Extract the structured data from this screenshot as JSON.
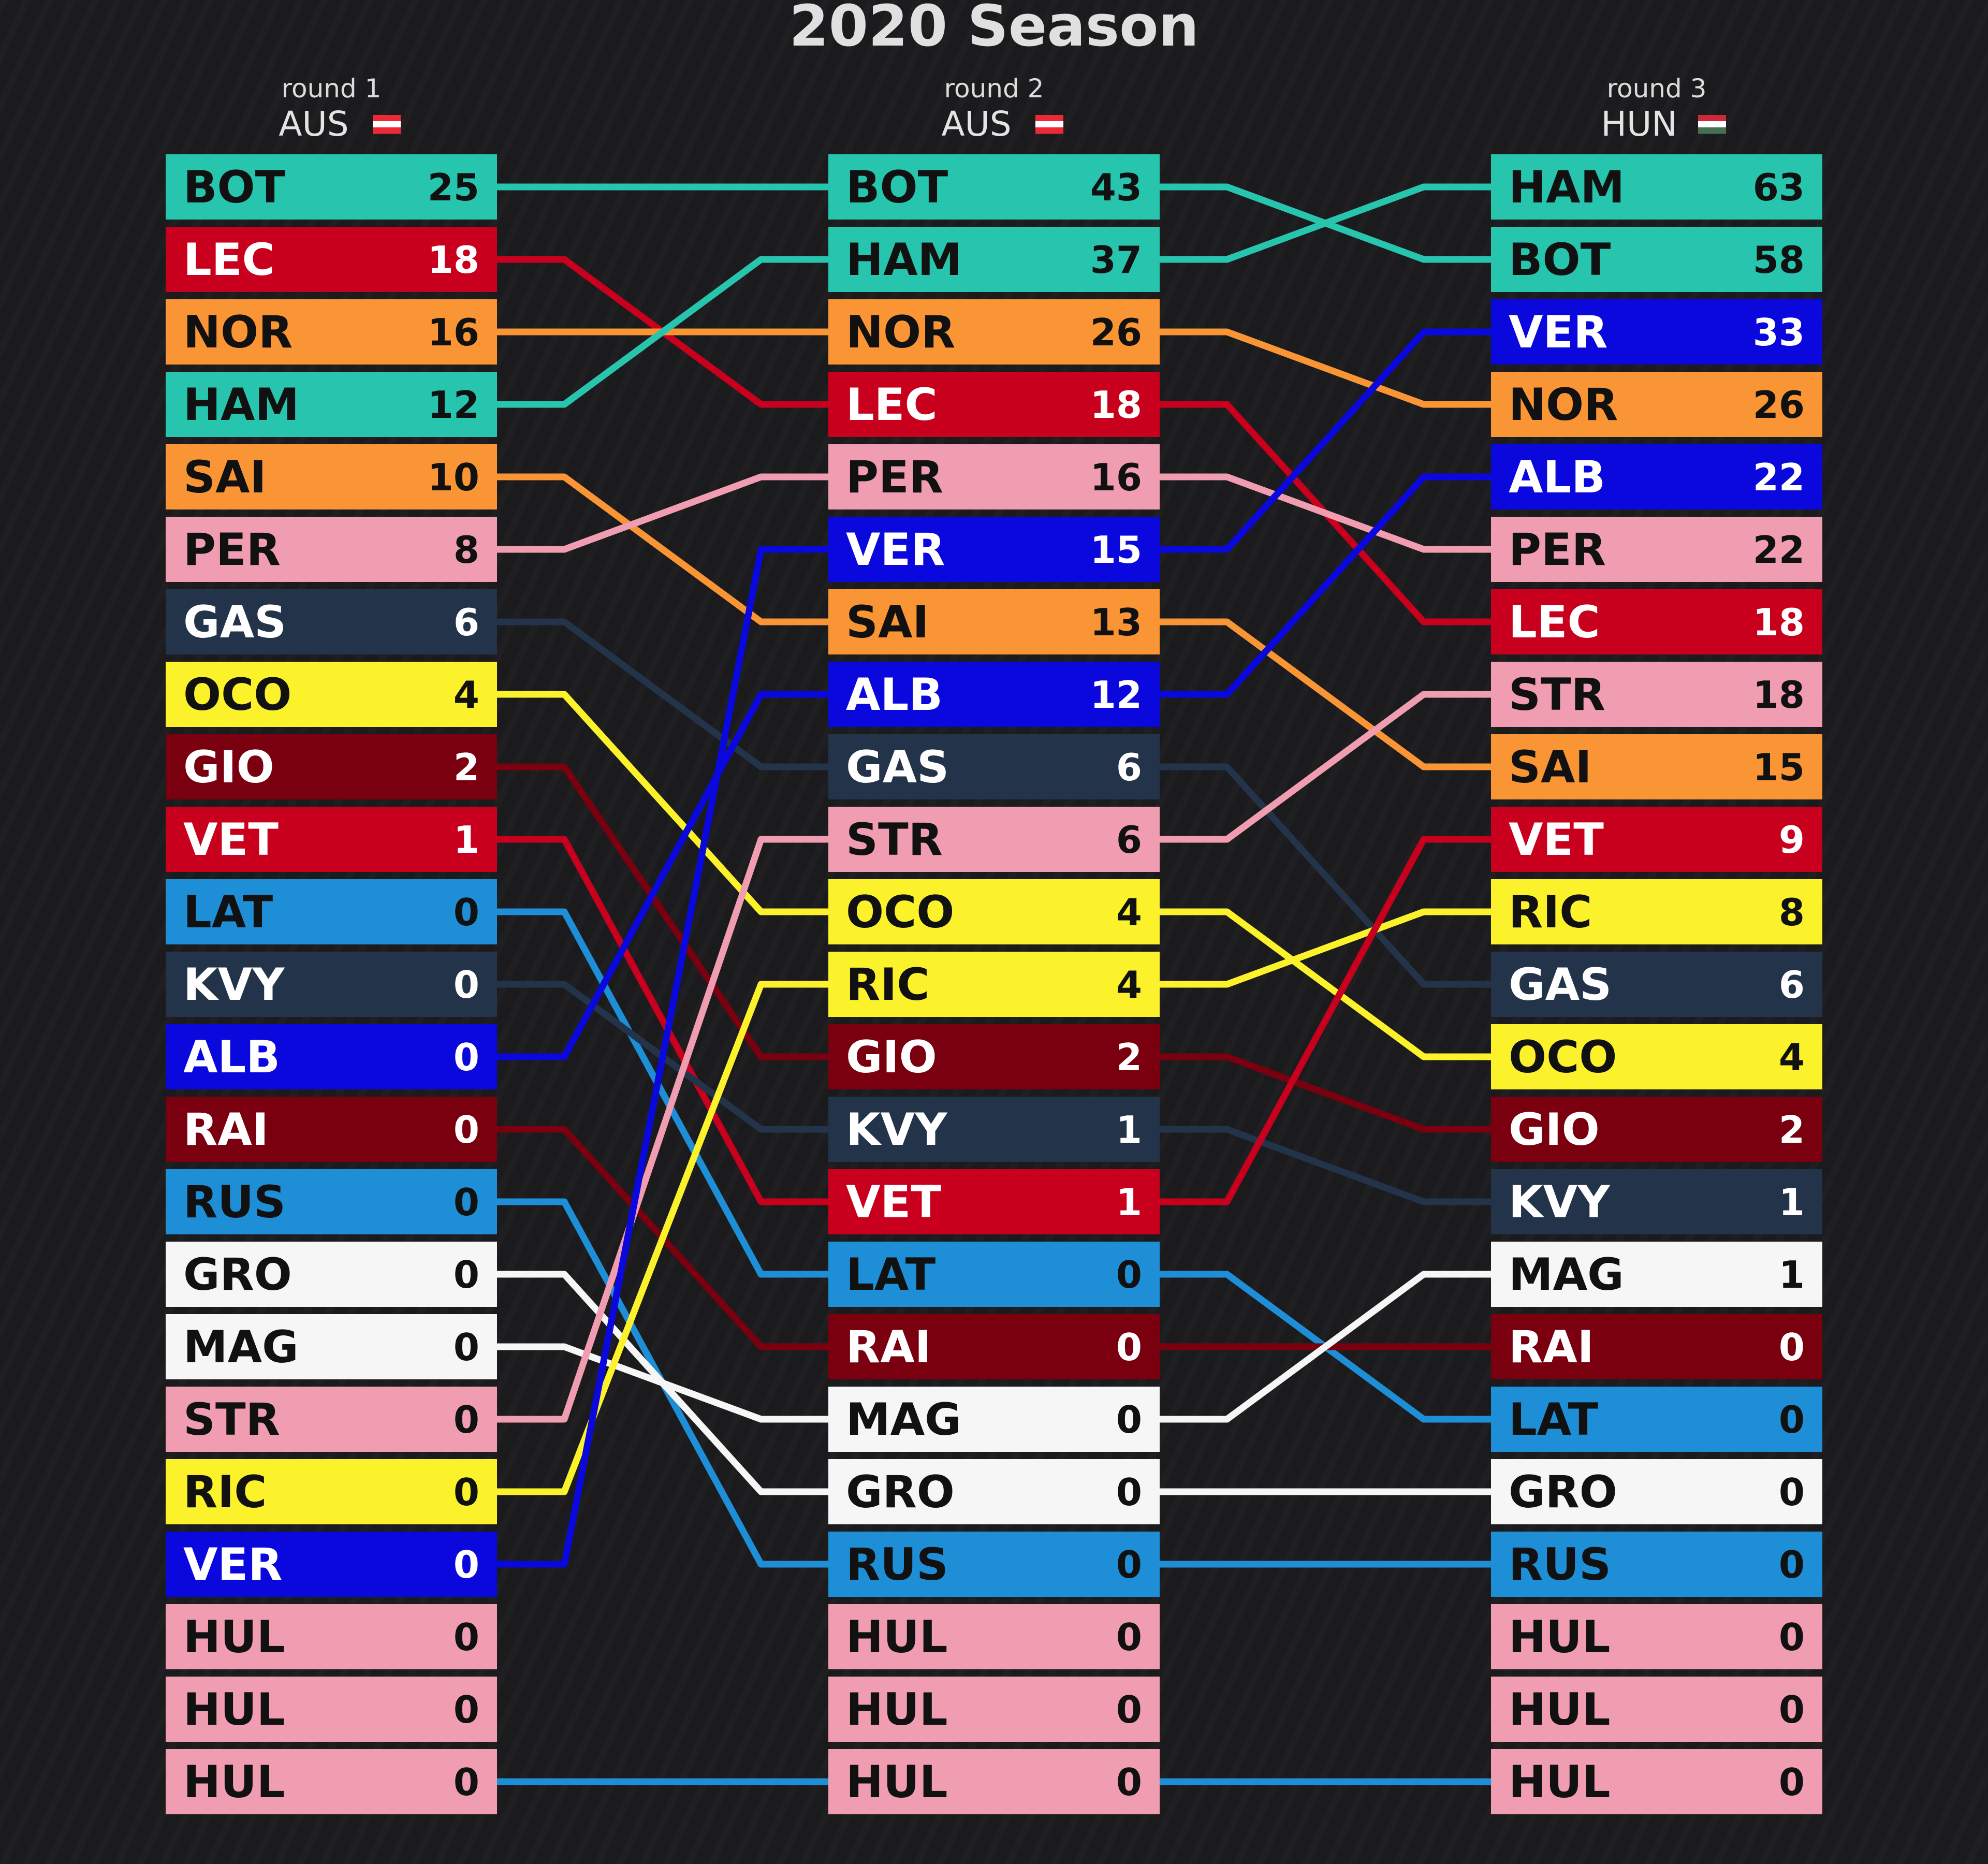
{
  "chart_data": {
    "type": "table",
    "title": "2020 Season",
    "rounds": [
      {
        "label": "round 1",
        "race": "AUS",
        "flag": [
          "#ed2939",
          "#ffffff",
          "#ed2939"
        ],
        "rows": [
          {
            "code": "BOT",
            "points": 25,
            "color": "#27c4ae",
            "text": "#111111"
          },
          {
            "code": "LEC",
            "points": 18,
            "color": "#c8001e",
            "text": "#ffffff"
          },
          {
            "code": "NOR",
            "points": 16,
            "color": "#fa9536",
            "text": "#111111"
          },
          {
            "code": "HAM",
            "points": 12,
            "color": "#27c4ae",
            "text": "#111111"
          },
          {
            "code": "SAI",
            "points": 10,
            "color": "#fa9536",
            "text": "#111111"
          },
          {
            "code": "PER",
            "points": 8,
            "color": "#f09db2",
            "text": "#111111"
          },
          {
            "code": "GAS",
            "points": 6,
            "color": "#23334a",
            "text": "#ffffff"
          },
          {
            "code": "OCO",
            "points": 4,
            "color": "#fbf22c",
            "text": "#111111"
          },
          {
            "code": "GIO",
            "points": 2,
            "color": "#7a0010",
            "text": "#ffffff"
          },
          {
            "code": "VET",
            "points": 1,
            "color": "#c8001e",
            "text": "#ffffff"
          },
          {
            "code": "LAT",
            "points": 0,
            "color": "#1e8ed6",
            "text": "#111111"
          },
          {
            "code": "KVY",
            "points": 0,
            "color": "#23334a",
            "text": "#ffffff"
          },
          {
            "code": "ALB",
            "points": 0,
            "color": "#0a08dc",
            "text": "#ffffff"
          },
          {
            "code": "RAI",
            "points": 0,
            "color": "#7a0010",
            "text": "#ffffff"
          },
          {
            "code": "RUS",
            "points": 0,
            "color": "#1e8ed6",
            "text": "#111111"
          },
          {
            "code": "GRO",
            "points": 0,
            "color": "#f6f6f6",
            "text": "#111111"
          },
          {
            "code": "MAG",
            "points": 0,
            "color": "#f6f6f6",
            "text": "#111111"
          },
          {
            "code": "STR",
            "points": 0,
            "color": "#f09db2",
            "text": "#111111"
          },
          {
            "code": "RIC",
            "points": 0,
            "color": "#fbf22c",
            "text": "#111111"
          },
          {
            "code": "VER",
            "points": 0,
            "color": "#0a08dc",
            "text": "#ffffff"
          },
          {
            "code": "HUL",
            "points": 0,
            "color": "#f09db2",
            "text": "#111111"
          },
          {
            "code": "HUL",
            "points": 0,
            "color": "#f09db2",
            "text": "#111111"
          },
          {
            "code": "HUL",
            "points": 0,
            "color": "#f09db2",
            "text": "#111111"
          }
        ]
      },
      {
        "label": "round 2",
        "race": "AUS",
        "flag": [
          "#ed2939",
          "#ffffff",
          "#ed2939"
        ],
        "rows": [
          {
            "code": "BOT",
            "points": 43,
            "color": "#27c4ae",
            "text": "#111111"
          },
          {
            "code": "HAM",
            "points": 37,
            "color": "#27c4ae",
            "text": "#111111"
          },
          {
            "code": "NOR",
            "points": 26,
            "color": "#fa9536",
            "text": "#111111"
          },
          {
            "code": "LEC",
            "points": 18,
            "color": "#c8001e",
            "text": "#ffffff"
          },
          {
            "code": "PER",
            "points": 16,
            "color": "#f09db2",
            "text": "#111111"
          },
          {
            "code": "VER",
            "points": 15,
            "color": "#0a08dc",
            "text": "#ffffff"
          },
          {
            "code": "SAI",
            "points": 13,
            "color": "#fa9536",
            "text": "#111111"
          },
          {
            "code": "ALB",
            "points": 12,
            "color": "#0a08dc",
            "text": "#ffffff"
          },
          {
            "code": "GAS",
            "points": 6,
            "color": "#23334a",
            "text": "#ffffff"
          },
          {
            "code": "STR",
            "points": 6,
            "color": "#f09db2",
            "text": "#111111"
          },
          {
            "code": "OCO",
            "points": 4,
            "color": "#fbf22c",
            "text": "#111111"
          },
          {
            "code": "RIC",
            "points": 4,
            "color": "#fbf22c",
            "text": "#111111"
          },
          {
            "code": "GIO",
            "points": 2,
            "color": "#7a0010",
            "text": "#ffffff"
          },
          {
            "code": "KVY",
            "points": 1,
            "color": "#23334a",
            "text": "#ffffff"
          },
          {
            "code": "VET",
            "points": 1,
            "color": "#c8001e",
            "text": "#ffffff"
          },
          {
            "code": "LAT",
            "points": 0,
            "color": "#1e8ed6",
            "text": "#111111"
          },
          {
            "code": "RAI",
            "points": 0,
            "color": "#7a0010",
            "text": "#ffffff"
          },
          {
            "code": "MAG",
            "points": 0,
            "color": "#f6f6f6",
            "text": "#111111"
          },
          {
            "code": "GRO",
            "points": 0,
            "color": "#f6f6f6",
            "text": "#111111"
          },
          {
            "code": "RUS",
            "points": 0,
            "color": "#1e8ed6",
            "text": "#111111"
          },
          {
            "code": "HUL",
            "points": 0,
            "color": "#f09db2",
            "text": "#111111"
          },
          {
            "code": "HUL",
            "points": 0,
            "color": "#f09db2",
            "text": "#111111"
          },
          {
            "code": "HUL",
            "points": 0,
            "color": "#f09db2",
            "text": "#111111"
          }
        ]
      },
      {
        "label": "round 3",
        "race": "HUN",
        "flag": [
          "#ce2939",
          "#ffffff",
          "#477050"
        ],
        "rows": [
          {
            "code": "HAM",
            "points": 63,
            "color": "#27c4ae",
            "text": "#111111"
          },
          {
            "code": "BOT",
            "points": 58,
            "color": "#27c4ae",
            "text": "#111111"
          },
          {
            "code": "VER",
            "points": 33,
            "color": "#0a08dc",
            "text": "#ffffff"
          },
          {
            "code": "NOR",
            "points": 26,
            "color": "#fa9536",
            "text": "#111111"
          },
          {
            "code": "ALB",
            "points": 22,
            "color": "#0a08dc",
            "text": "#ffffff"
          },
          {
            "code": "PER",
            "points": 22,
            "color": "#f09db2",
            "text": "#111111"
          },
          {
            "code": "LEC",
            "points": 18,
            "color": "#c8001e",
            "text": "#ffffff"
          },
          {
            "code": "STR",
            "points": 18,
            "color": "#f09db2",
            "text": "#111111"
          },
          {
            "code": "SAI",
            "points": 15,
            "color": "#fa9536",
            "text": "#111111"
          },
          {
            "code": "VET",
            "points": 9,
            "color": "#c8001e",
            "text": "#ffffff"
          },
          {
            "code": "RIC",
            "points": 8,
            "color": "#fbf22c",
            "text": "#111111"
          },
          {
            "code": "GAS",
            "points": 6,
            "color": "#23334a",
            "text": "#ffffff"
          },
          {
            "code": "OCO",
            "points": 4,
            "color": "#fbf22c",
            "text": "#111111"
          },
          {
            "code": "GIO",
            "points": 2,
            "color": "#7a0010",
            "text": "#ffffff"
          },
          {
            "code": "KVY",
            "points": 1,
            "color": "#23334a",
            "text": "#ffffff"
          },
          {
            "code": "MAG",
            "points": 1,
            "color": "#f6f6f6",
            "text": "#111111"
          },
          {
            "code": "RAI",
            "points": 0,
            "color": "#7a0010",
            "text": "#ffffff"
          },
          {
            "code": "LAT",
            "points": 0,
            "color": "#1e8ed6",
            "text": "#111111"
          },
          {
            "code": "GRO",
            "points": 0,
            "color": "#f6f6f6",
            "text": "#111111"
          },
          {
            "code": "RUS",
            "points": 0,
            "color": "#1e8ed6",
            "text": "#111111"
          },
          {
            "code": "HUL",
            "points": 0,
            "color": "#f09db2",
            "text": "#111111"
          },
          {
            "code": "HUL",
            "points": 0,
            "color": "#f09db2",
            "text": "#111111"
          },
          {
            "code": "HUL",
            "points": 0,
            "color": "#f09db2",
            "text": "#111111"
          }
        ]
      }
    ],
    "connectors": [
      [
        {
          "from": 0,
          "to": 0,
          "color": "#27c4ae"
        },
        {
          "from": 1,
          "to": 3,
          "color": "#c8001e"
        },
        {
          "from": 2,
          "to": 2,
          "color": "#fa9536"
        },
        {
          "from": 3,
          "to": 1,
          "color": "#27c4ae"
        },
        {
          "from": 4,
          "to": 6,
          "color": "#fa9536"
        },
        {
          "from": 5,
          "to": 4,
          "color": "#f09db2"
        },
        {
          "from": 6,
          "to": 8,
          "color": "#23334a"
        },
        {
          "from": 7,
          "to": 10,
          "color": "#fbf22c"
        },
        {
          "from": 8,
          "to": 12,
          "color": "#7a0010"
        },
        {
          "from": 9,
          "to": 14,
          "color": "#c8001e"
        },
        {
          "from": 10,
          "to": 15,
          "color": "#1e8ed6"
        },
        {
          "from": 11,
          "to": 13,
          "color": "#23334a"
        },
        {
          "from": 12,
          "to": 7,
          "color": "#0a08dc"
        },
        {
          "from": 13,
          "to": 16,
          "color": "#7a0010"
        },
        {
          "from": 14,
          "to": 19,
          "color": "#1e8ed6"
        },
        {
          "from": 15,
          "to": 18,
          "color": "#f6f6f6"
        },
        {
          "from": 16,
          "to": 17,
          "color": "#f6f6f6"
        },
        {
          "from": 17,
          "to": 9,
          "color": "#f09db2"
        },
        {
          "from": 18,
          "to": 11,
          "color": "#fbf22c"
        },
        {
          "from": 19,
          "to": 5,
          "color": "#0a08dc"
        },
        {
          "from": 22,
          "to": 22,
          "color": "#1e8ed6"
        }
      ],
      [
        {
          "from": 0,
          "to": 1,
          "color": "#27c4ae"
        },
        {
          "from": 1,
          "to": 0,
          "color": "#27c4ae"
        },
        {
          "from": 2,
          "to": 3,
          "color": "#fa9536"
        },
        {
          "from": 3,
          "to": 6,
          "color": "#c8001e"
        },
        {
          "from": 4,
          "to": 5,
          "color": "#f09db2"
        },
        {
          "from": 5,
          "to": 2,
          "color": "#0a08dc"
        },
        {
          "from": 6,
          "to": 8,
          "color": "#fa9536"
        },
        {
          "from": 7,
          "to": 4,
          "color": "#0a08dc"
        },
        {
          "from": 8,
          "to": 11,
          "color": "#23334a"
        },
        {
          "from": 9,
          "to": 7,
          "color": "#f09db2"
        },
        {
          "from": 10,
          "to": 12,
          "color": "#fbf22c"
        },
        {
          "from": 11,
          "to": 10,
          "color": "#fbf22c"
        },
        {
          "from": 12,
          "to": 13,
          "color": "#7a0010"
        },
        {
          "from": 13,
          "to": 14,
          "color": "#23334a"
        },
        {
          "from": 14,
          "to": 9,
          "color": "#c8001e"
        },
        {
          "from": 15,
          "to": 17,
          "color": "#1e8ed6"
        },
        {
          "from": 16,
          "to": 16,
          "color": "#7a0010"
        },
        {
          "from": 17,
          "to": 15,
          "color": "#f6f6f6"
        },
        {
          "from": 18,
          "to": 18,
          "color": "#f6f6f6"
        },
        {
          "from": 19,
          "to": 19,
          "color": "#1e8ed6"
        },
        {
          "from": 22,
          "to": 22,
          "color": "#1e8ed6"
        }
      ]
    ]
  }
}
